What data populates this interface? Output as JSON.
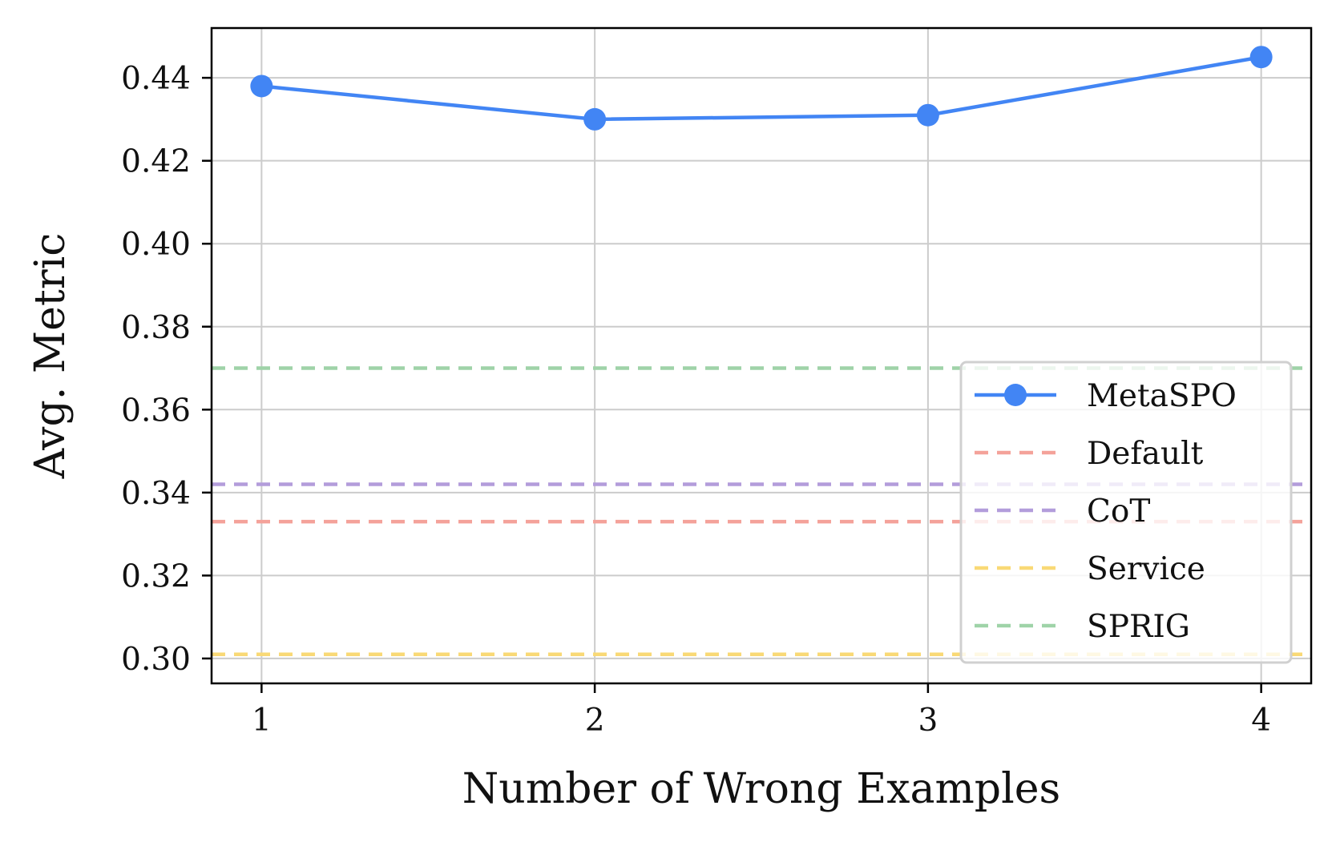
{
  "chart_data": {
    "type": "line",
    "title": "",
    "xlabel": "Number of Wrong Examples",
    "ylabel": "Avg. Metric",
    "x": [
      1,
      2,
      3,
      4
    ],
    "xticks": [
      1,
      2,
      3,
      4
    ],
    "xtick_labels": [
      "1",
      "2",
      "3",
      "4"
    ],
    "xlim": [
      0.85,
      4.15
    ],
    "yticks": [
      0.3,
      0.32,
      0.34,
      0.36,
      0.38,
      0.4,
      0.42,
      0.44
    ],
    "ytick_labels": [
      "0.30",
      "0.32",
      "0.34",
      "0.36",
      "0.38",
      "0.40",
      "0.42",
      "0.44"
    ],
    "ylim": [
      0.294,
      0.452
    ],
    "grid": true,
    "legend_position": "lower-right",
    "series": [
      {
        "name": "MetaSPO",
        "style": "solid-marker",
        "color": "#4285f4",
        "values": [
          0.438,
          0.43,
          0.431,
          0.445
        ]
      },
      {
        "name": "Default",
        "style": "dashed",
        "color": "#f4a29a",
        "value": 0.333
      },
      {
        "name": "CoT",
        "style": "dashed",
        "color": "#b39ddb",
        "value": 0.342
      },
      {
        "name": "Service",
        "style": "dashed",
        "color": "#f9d976",
        "value": 0.301
      },
      {
        "name": "SPRIG",
        "style": "dashed",
        "color": "#9fd3a8",
        "value": 0.37
      }
    ]
  }
}
